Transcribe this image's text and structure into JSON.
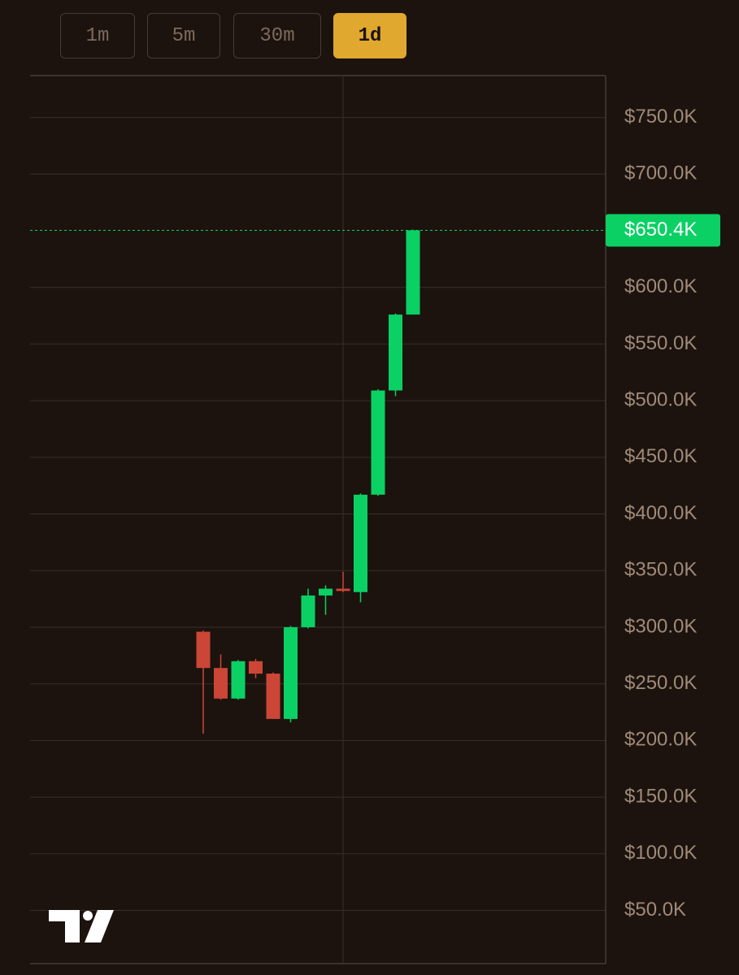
{
  "intervals": [
    "1m",
    "5m",
    "30m",
    "1d"
  ],
  "active_interval": 3,
  "chart_data": {
    "type": "candlestick",
    "categories": [
      null,
      null,
      null,
      null,
      null,
      null,
      null,
      null,
      null,
      null,
      null,
      null,
      null
    ],
    "open": [
      296000,
      264000,
      237000,
      270000,
      259000,
      219000,
      300000,
      328000,
      334000,
      331000,
      417000,
      509000,
      576000
    ],
    "high": [
      297000,
      276000,
      271000,
      272000,
      260000,
      301000,
      334000,
      337000,
      349000,
      418000,
      510000,
      577000,
      651000
    ],
    "low": [
      206000,
      236000,
      236000,
      255000,
      219000,
      216000,
      299000,
      311000,
      331000,
      322000,
      416000,
      504000,
      576000
    ],
    "close": [
      264000,
      237000,
      270000,
      259000,
      219000,
      300000,
      328000,
      334000,
      332000,
      417000,
      509000,
      576000,
      650400
    ],
    "up_color": "#0bd064",
    "down_color": "#cc4637",
    "ylim": [
      3000,
      787000
    ],
    "yticks": [
      {
        "value": 750000,
        "label": "$750.0K"
      },
      {
        "value": 700000,
        "label": "$700.0K"
      },
      {
        "value": 600000,
        "label": "$600.0K"
      },
      {
        "value": 550000,
        "label": "$550.0K"
      },
      {
        "value": 500000,
        "label": "$500.0K"
      },
      {
        "value": 450000,
        "label": "$450.0K"
      },
      {
        "value": 400000,
        "label": "$400.0K"
      },
      {
        "value": 350000,
        "label": "$350.0K"
      },
      {
        "value": 300000,
        "label": "$300.0K"
      },
      {
        "value": 250000,
        "label": "$250.0K"
      },
      {
        "value": 200000,
        "label": "$200.0K"
      },
      {
        "value": 150000,
        "label": "$150.0K"
      },
      {
        "value": 100000,
        "label": "$100.0K"
      },
      {
        "value": 50000,
        "label": "$50.0K"
      }
    ],
    "grid": true,
    "last_price": {
      "value": 650400,
      "label": "$650.4K"
    }
  }
}
